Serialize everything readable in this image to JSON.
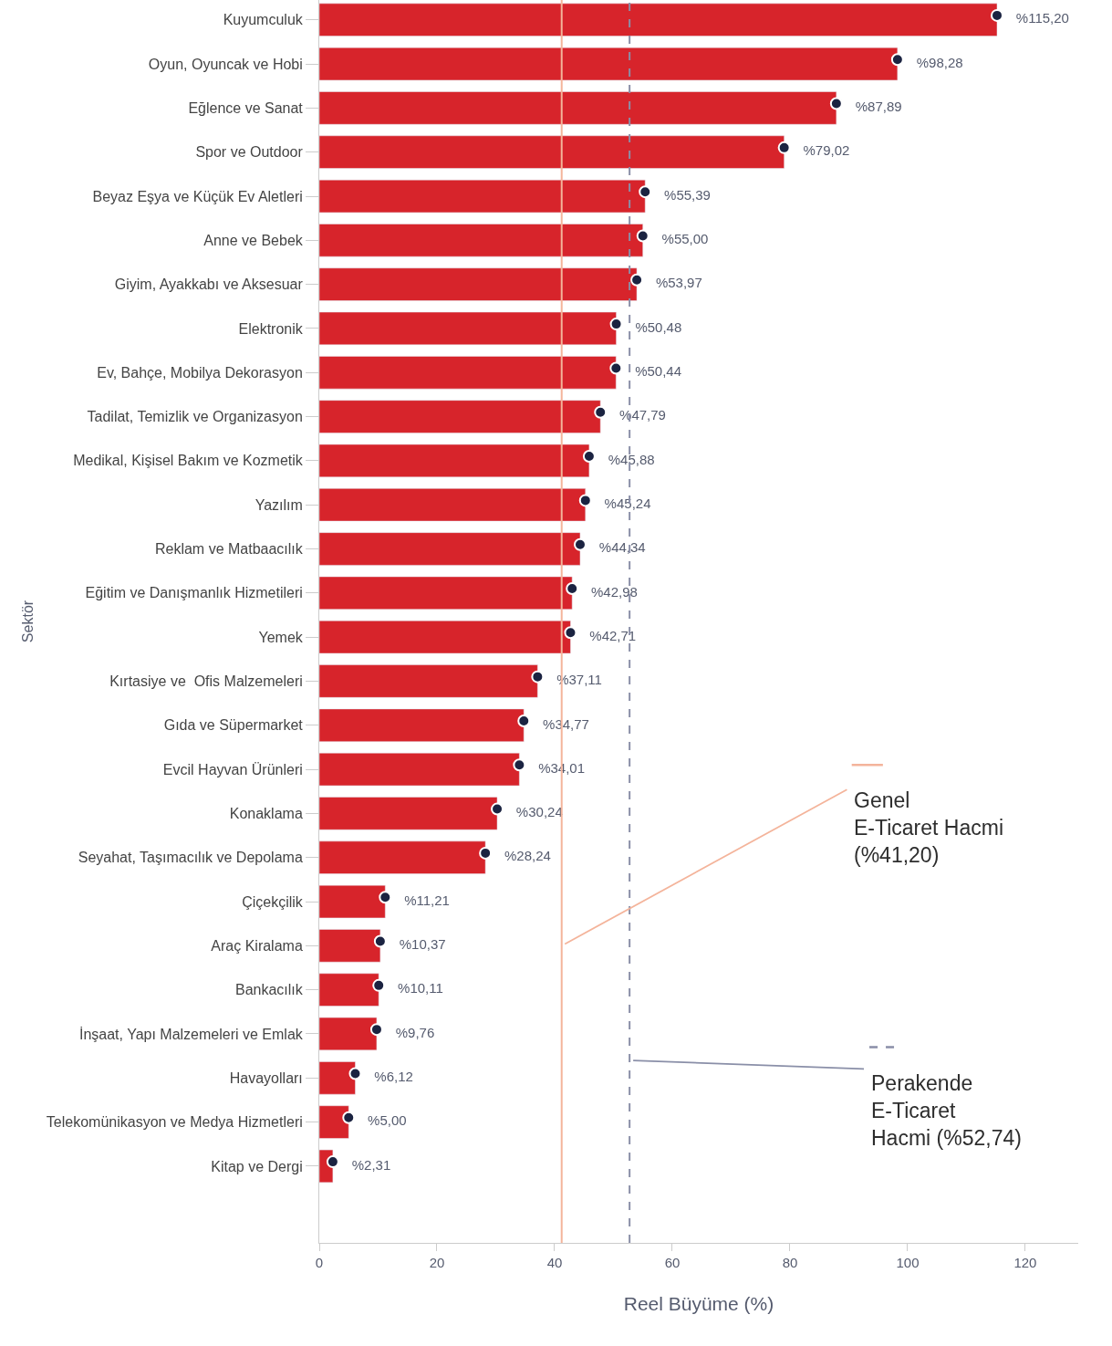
{
  "chart_data": {
    "type": "bar",
    "orientation": "horizontal",
    "xlabel": "Reel Büyüme (%)",
    "ylabel": "Sektör",
    "categories": [
      "Kuyumculuk",
      "Oyun, Oyuncak ve Hobi",
      "Eğlence ve Sanat",
      "Spor ve Outdoor",
      "Beyaz Eşya ve Küçük Ev Aletleri",
      "Anne ve Bebek",
      "Giyim, Ayakkabı ve Aksesuar",
      "Elektronik",
      "Ev, Bahçe, Mobilya Dekorasyon",
      "Tadilat, Temizlik ve Organizasyon",
      "Medikal, Kişisel Bakım ve Kozmetik",
      "Yazılım",
      "Reklam ve Matbaacılık",
      "Eğitim ve Danışmanlık Hizmetileri",
      "Yemek",
      "Kırtasiye ve  Ofis Malzemeleri",
      "Gıda ve Süpermarket",
      "Evcil Hayvan Ürünleri",
      "Konaklama",
      "Seyahat, Taşımacılık ve Depolama",
      "Çiçekçilik",
      "Araç Kiralama",
      "Bankacılık",
      "İnşaat, Yapı Malzemeleri ve Emlak",
      "Havayolları",
      "Telekomünikasyon ve Medya Hizmetleri",
      "Kitap ve Dergi"
    ],
    "series": [
      {
        "color": "#d7242b",
        "values": [
          115.2,
          98.28,
          87.89,
          79.02,
          55.39,
          55.0,
          53.97,
          50.48,
          50.44,
          47.79,
          45.88,
          45.24,
          44.34,
          42.98,
          42.71,
          37.11,
          34.77,
          34.01,
          30.24,
          28.24,
          11.21,
          10.37,
          10.11,
          9.76,
          6.12,
          5.0,
          2.31
        ],
        "value_labels": [
          "%115,20",
          "%98,28",
          "%87,89",
          "%79,02",
          "%55,39",
          "%55,00",
          "%53,97",
          "%50,48",
          "%50,44",
          "%47,79",
          "%45,88",
          "%45,24",
          "%44,34",
          "%42,98",
          "%42,71",
          "%37,11",
          "%34,77",
          "%34,01",
          "%30,24",
          "%28,24",
          "%11,21",
          "%10,37",
          "%10,11",
          "%9,76",
          "%6,12",
          "%5,00",
          "%2,31"
        ]
      },
      {
        "type": "scatter",
        "color": "#1b2341",
        "marker": "circle",
        "values": [
          115.2,
          98.28,
          87.89,
          79.02,
          55.39,
          55.0,
          53.97,
          50.48,
          50.44,
          47.79,
          45.88,
          45.24,
          44.34,
          42.98,
          42.71,
          37.11,
          34.77,
          34.01,
          30.24,
          28.24,
          11.21,
          10.37,
          10.11,
          9.76,
          6.12,
          5.0,
          2.31
        ]
      }
    ],
    "xlim": [
      0,
      129
    ],
    "xticks": [
      0,
      20,
      40,
      60,
      80,
      100,
      120
    ],
    "ref_lines": [
      {
        "axis": "x",
        "value": 41.2,
        "label": "Genel\nE-Ticaret Hacmi\n(%41,20)",
        "color": "#f4b49b",
        "line_style": "solid"
      },
      {
        "axis": "x",
        "value": 52.74,
        "label": "Perakende\nE-Ticaret\nHacmi (%52,74)",
        "color": "#8a8fa8",
        "line_style": "dashed"
      }
    ]
  }
}
